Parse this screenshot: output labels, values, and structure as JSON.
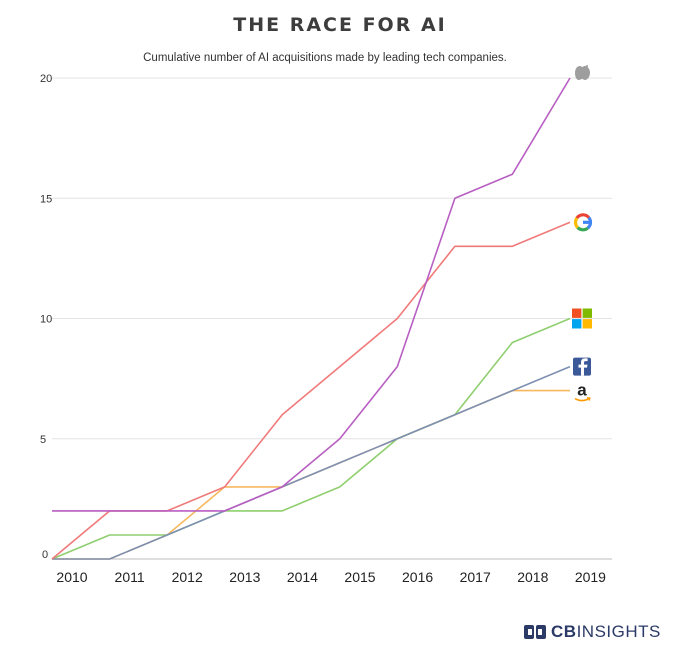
{
  "chart_data": {
    "type": "line",
    "title": "THE RACE FOR AI",
    "subtitle": "Cumulative number of AI acquisitions made by leading tech companies.",
    "xlabel": "",
    "ylabel": "",
    "categories": [
      "2010",
      "2011",
      "2012",
      "2013",
      "2014",
      "2015",
      "2016",
      "2017",
      "2018",
      "2019"
    ],
    "ylim": [
      0,
      20
    ],
    "yticks": [
      "0",
      "5",
      "10",
      "15",
      "20"
    ],
    "grid": true,
    "legend": "company logos at line ends (right)",
    "series": [
      {
        "name": "Amazon",
        "icon": "amazon-logo-icon",
        "color": "#f7b85e",
        "values": [
          0,
          0,
          1,
          3,
          3,
          4,
          5,
          6,
          7,
          7
        ]
      },
      {
        "name": "Microsoft",
        "icon": "microsoft-logo-icon",
        "color": "#8fcf6f",
        "values": [
          0,
          1,
          1,
          2,
          2,
          3,
          5,
          6,
          9,
          10
        ]
      },
      {
        "name": "Facebook",
        "icon": "facebook-logo-icon",
        "color": "#7d8fb3",
        "values": [
          0,
          0,
          1,
          2,
          3,
          4,
          5,
          6,
          7,
          8
        ]
      },
      {
        "name": "Google",
        "icon": "google-logo-icon",
        "color": "#f07a7a",
        "values": [
          0,
          2,
          2,
          3,
          6,
          8,
          10,
          13,
          13,
          14
        ]
      },
      {
        "name": "Apple",
        "icon": "apple-logo-icon",
        "color": "#b85fc2",
        "values": [
          2,
          2,
          2,
          2,
          3,
          5,
          8,
          15,
          16,
          20
        ]
      }
    ]
  },
  "brand": {
    "text_bold": "CB",
    "text_regular": "INSIGHTS",
    "color": "#2b3a67"
  }
}
